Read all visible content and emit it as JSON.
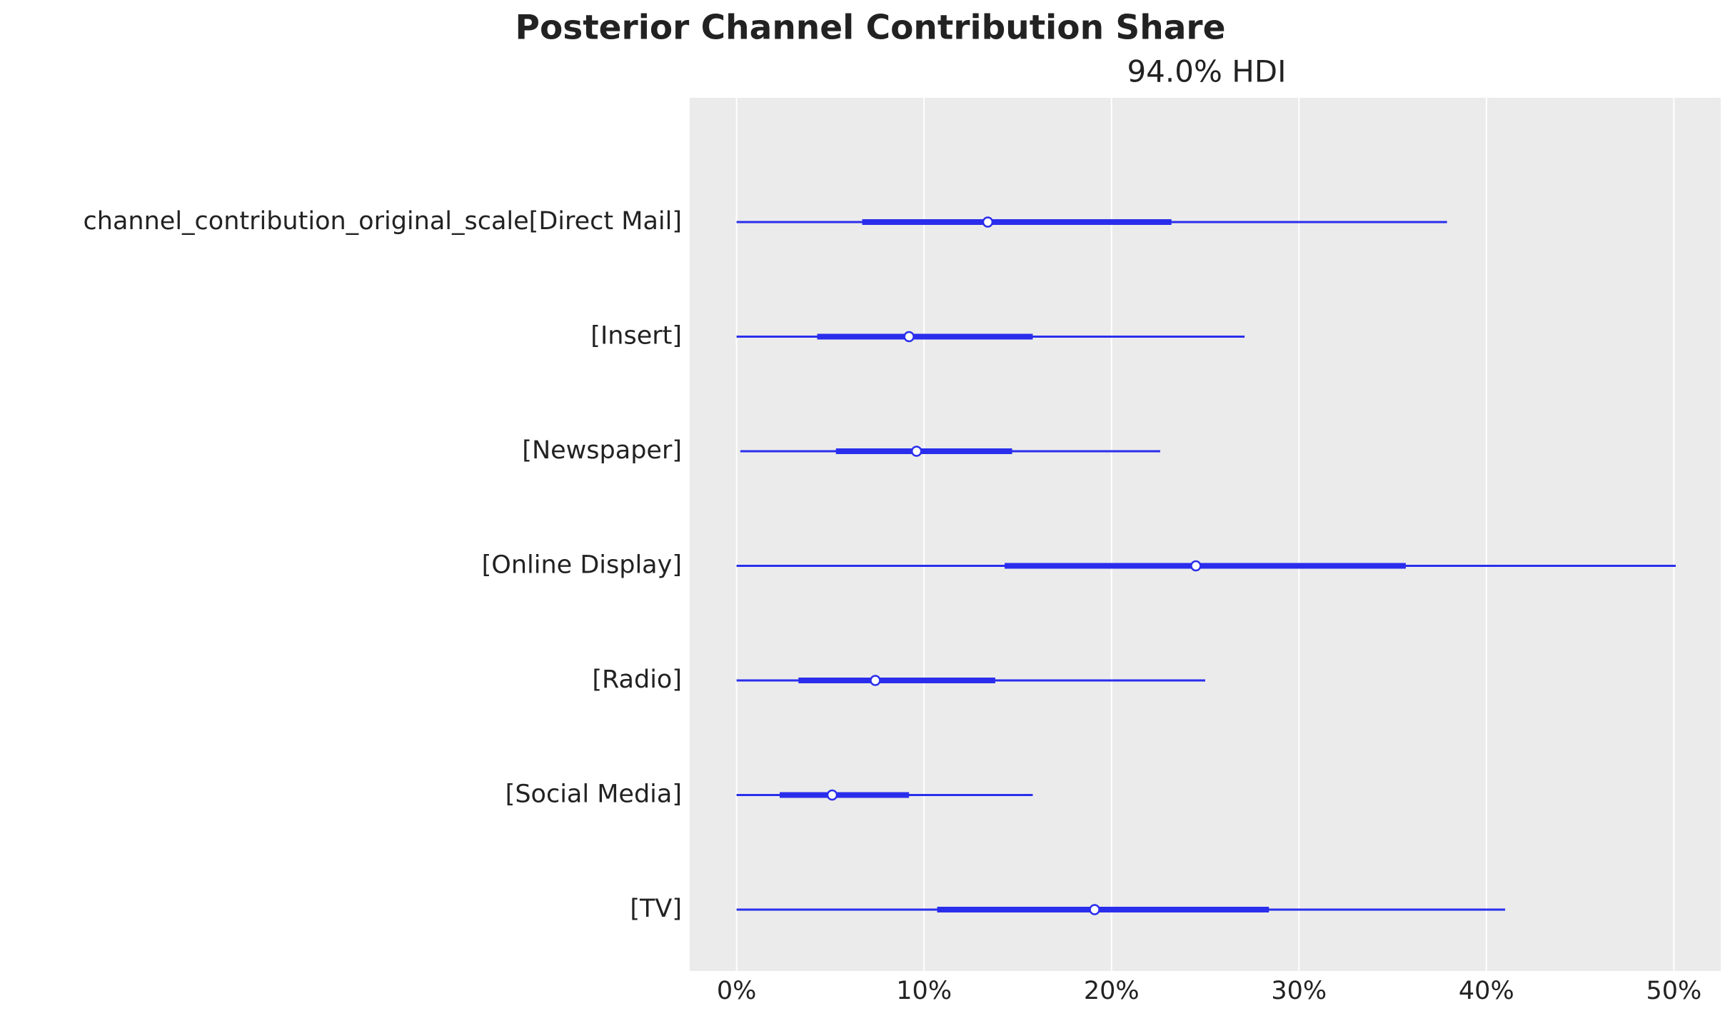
{
  "chart_data": {
    "type": "forest",
    "title": "Posterior Channel Contribution Share",
    "subtitle": "94.0% HDI",
    "categories": [
      "channel_contribution_original_scale[Direct Mail]",
      "[Insert]",
      "[Newspaper]",
      "[Online Display]",
      "[Radio]",
      "[Social Media]",
      "[TV]"
    ],
    "hdi_low": [
      0,
      0,
      0.2,
      0,
      0,
      0,
      0
    ],
    "hdi_high": [
      37.9,
      27.1,
      22.6,
      50.1,
      25.0,
      15.8,
      41.0
    ],
    "iqr_low": [
      6.7,
      4.3,
      5.3,
      14.3,
      3.3,
      2.3,
      10.7
    ],
    "iqr_high": [
      23.2,
      15.8,
      14.7,
      35.7,
      13.8,
      9.2,
      28.4
    ],
    "median": [
      13.4,
      9.2,
      9.6,
      24.5,
      7.4,
      5.1,
      19.1
    ],
    "color": "#2a2eec",
    "xlim": [
      -2.5,
      52.5
    ],
    "xticks": [
      {
        "value": 0,
        "label": "0%"
      },
      {
        "value": 10,
        "label": "10%"
      },
      {
        "value": 20,
        "label": "20%"
      },
      {
        "value": 30,
        "label": "30%"
      },
      {
        "value": 40,
        "label": "40%"
      },
      {
        "value": 50,
        "label": "50%"
      }
    ],
    "grid": true
  }
}
